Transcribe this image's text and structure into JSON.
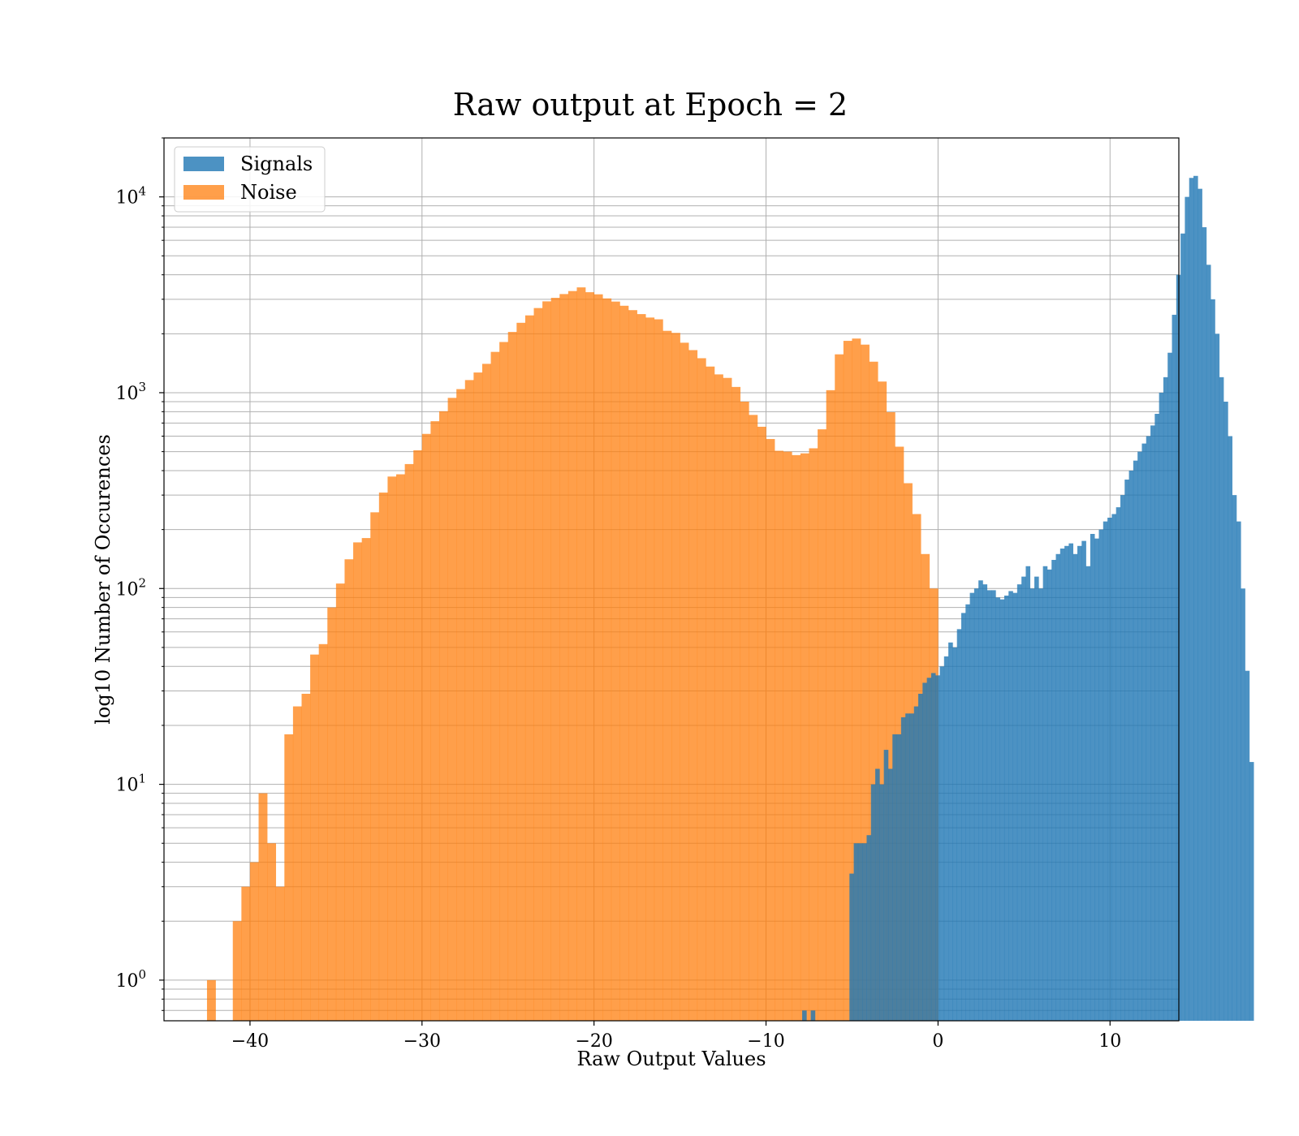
{
  "colors": {
    "signals": "#1f77b4",
    "noise": "#ff7f0e",
    "grid": "#b0b0b0"
  },
  "chart_data": {
    "type": "bar",
    "title": "Raw output at Epoch = 2",
    "xlabel": "Raw Output Values",
    "ylabel": "log10 Number of Occurences",
    "yscale": "log",
    "xlim": [
      -45,
      14
    ],
    "ylim": [
      0.62,
      20000
    ],
    "grid": true,
    "legend": "upper left",
    "xticks": [
      -40,
      -30,
      -20,
      -10,
      0,
      10
    ],
    "xtick_labels": [
      "−40",
      "−30",
      "−20",
      "−10",
      "0",
      "10"
    ],
    "yticks": [
      1,
      10,
      100,
      1000,
      10000
    ],
    "ytick_exponents": [
      "0",
      "1",
      "2",
      "3",
      "4"
    ],
    "series": [
      {
        "name": "Noise",
        "bin_start": -42.5,
        "bin_width": 0.5,
        "alpha": 0.75,
        "values": [
          1,
          0,
          0,
          2,
          3,
          4,
          9,
          5,
          3,
          18,
          25,
          29,
          46,
          52,
          80,
          106,
          141,
          172,
          181,
          245,
          309,
          373,
          383,
          432,
          508,
          616,
          715,
          804,
          941,
          1043,
          1160,
          1268,
          1404,
          1616,
          1815,
          2043,
          2275,
          2482,
          2706,
          2927,
          3051,
          3190,
          3304,
          3450,
          3260,
          3180,
          3030,
          2920,
          2780,
          2640,
          2520,
          2420,
          2370,
          2070,
          2020,
          1800,
          1650,
          1500,
          1360,
          1240,
          1190,
          1070,
          900,
          770,
          670,
          580,
          505,
          500,
          480,
          490,
          520,
          650,
          1030,
          1570,
          1840,
          1890,
          1760,
          1440,
          1140,
          795,
          530,
          345,
          240,
          150,
          100
        ]
      },
      {
        "name": "Signals",
        "bin_start": -7.9,
        "bin_width": 0.25,
        "alpha": 0.8,
        "values": [
          0.7,
          0,
          0.7,
          0.6,
          0.6,
          0.6,
          0,
          0,
          0,
          0,
          0,
          3.5,
          5,
          5,
          5,
          5.5,
          10,
          12,
          10,
          15,
          12,
          18,
          18,
          22,
          23,
          23,
          25,
          29,
          33,
          35,
          37,
          36,
          40,
          45,
          53,
          50,
          62,
          75,
          83,
          95,
          100,
          110,
          105,
          98,
          98,
          90,
          88,
          92,
          97,
          95,
          105,
          115,
          130,
          100,
          115,
          100,
          130,
          125,
          140,
          150,
          160,
          165,
          170,
          150,
          165,
          175,
          130,
          190,
          180,
          200,
          220,
          230,
          240,
          260,
          300,
          360,
          400,
          450,
          500,
          550,
          600,
          680,
          780,
          1000,
          1200,
          1600,
          2500,
          4000,
          6500,
          10000,
          12500,
          12800,
          11000,
          7000,
          4500,
          3000,
          2000,
          1200,
          900,
          600,
          300,
          220,
          100,
          38,
          13
        ]
      }
    ]
  }
}
